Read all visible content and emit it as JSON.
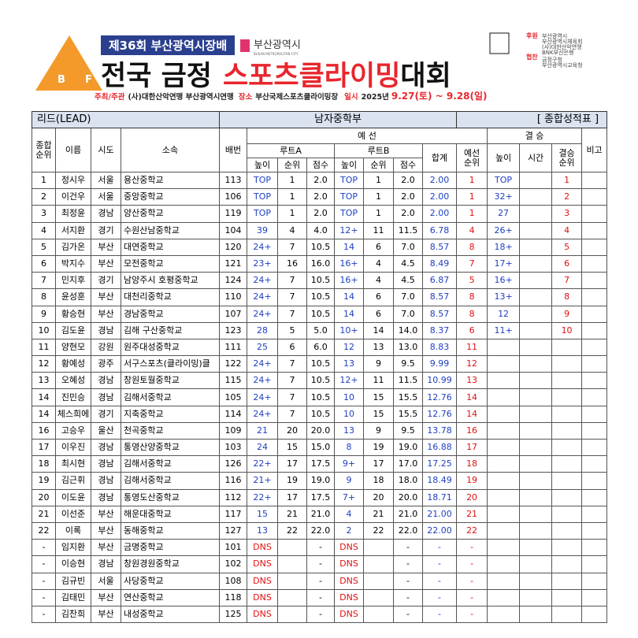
{
  "header": {
    "event_no": "제36회 부산광역시장배",
    "city_logo": "부산광역시",
    "city_logo_en": "BUSAN METROPOLITAN CITY",
    "logo_letters": [
      "B",
      "F"
    ],
    "title_black": "전국 금정",
    "title_red": "스포츠클라이밍",
    "title_end": "대회",
    "info": {
      "host_label": "주최/주관",
      "host": "(사)대한산악연맹 부산광역시연맹",
      "place_label": "장소",
      "place": "부산국제스포츠클라이밍장",
      "date_label": "일시",
      "year": "2025년",
      "dates": "9.27(토) ~ 9.28(일)"
    },
    "support_label": "후원",
    "support": [
      "부산광역시",
      "부산광역시체육회",
      "(사)대한산악연맹",
      "BNK부산은행"
    ],
    "sponsor_label": "협찬",
    "sponsor": [
      "금정구청",
      "부산광역시교육청"
    ]
  },
  "table": {
    "title_left": "리드(LEAD)",
    "title_center": "남자중학부",
    "title_right": "[ 종합성적표 ]",
    "headers": {
      "rank": "종합\n순위",
      "name": "이름",
      "city": "시도",
      "team": "소속",
      "bib": "배번",
      "qual": "예 선",
      "route_a": "루트A",
      "route_b": "루트B",
      "height": "높이",
      "route_rank": "순위",
      "score": "점수",
      "total": "합계",
      "qual_rank": "예선\n순위",
      "final": "결 승",
      "final_height": "높이",
      "time": "시간",
      "final_rank": "결승\n순위",
      "note": "비고"
    },
    "rows": [
      [
        "1",
        "정시우",
        "서울",
        "용산중학교",
        "113",
        "TOP",
        "1",
        "2.0",
        "TOP",
        "1",
        "2.0",
        "2.00",
        "1",
        "TOP",
        null,
        "1"
      ],
      [
        "2",
        "이건우",
        "서울",
        "중앙중학교",
        "106",
        "TOP",
        "1",
        "2.0",
        "TOP",
        "1",
        "2.0",
        "2.00",
        "1",
        "32+",
        null,
        "2"
      ],
      [
        "3",
        "최정윤",
        "경남",
        "양산중학교",
        "119",
        "TOP",
        "1",
        "2.0",
        "TOP",
        "1",
        "2.0",
        "2.00",
        "1",
        "27",
        null,
        "3"
      ],
      [
        "4",
        "서지환",
        "경기",
        "수원산남중학교",
        "104",
        "39",
        "4",
        "4.0",
        "12+",
        "11",
        "11.5",
        "6.78",
        "4",
        "26+",
        null,
        "4"
      ],
      [
        "5",
        "김가온",
        "부산",
        "대연중학교",
        "120",
        "24+",
        "7",
        "10.5",
        "14",
        "6",
        "7.0",
        "8.57",
        "8",
        "18+",
        null,
        "5"
      ],
      [
        "6",
        "박지수",
        "부산",
        "모전중학교",
        "121",
        "23+",
        "16",
        "16.0",
        "16+",
        "4",
        "4.5",
        "8.49",
        "7",
        "17+",
        null,
        "6"
      ],
      [
        "7",
        "민지후",
        "경기",
        "남양주시 호평중학교",
        "124",
        "24+",
        "7",
        "10.5",
        "16+",
        "4",
        "4.5",
        "6.87",
        "5",
        "16+",
        null,
        "7"
      ],
      [
        "8",
        "윤성훈",
        "부산",
        "대천리중학교",
        "110",
        "24+",
        "7",
        "10.5",
        "14",
        "6",
        "7.0",
        "8.57",
        "8",
        "13+",
        null,
        "8"
      ],
      [
        "9",
        "황승현",
        "부산",
        "경남중학교",
        "107",
        "24+",
        "7",
        "10.5",
        "14",
        "6",
        "7.0",
        "8.57",
        "8",
        "12",
        null,
        "9"
      ],
      [
        "10",
        "김도윤",
        "경남",
        "김해 구산중학교",
        "123",
        "28",
        "5",
        "5.0",
        "10+",
        "14",
        "14.0",
        "8.37",
        "6",
        "11+",
        null,
        "10"
      ],
      [
        "11",
        "양현모",
        "강원",
        "원주대성중학교",
        "111",
        "25",
        "6",
        "6.0",
        "12",
        "13",
        "13.0",
        "8.83",
        "11",
        null,
        null,
        null
      ],
      [
        "12",
        "황예성",
        "광주",
        "서구스포츠(클라이밍)클",
        "122",
        "24+",
        "7",
        "10.5",
        "13",
        "9",
        "9.5",
        "9.99",
        "12",
        null,
        null,
        null
      ],
      [
        "13",
        "오혜성",
        "경남",
        "창원토월중학교",
        "115",
        "24+",
        "7",
        "10.5",
        "12+",
        "11",
        "11.5",
        "10.99",
        "13",
        null,
        null,
        null
      ],
      [
        "14",
        "진민승",
        "경남",
        "김해서중학교",
        "105",
        "24+",
        "7",
        "10.5",
        "10",
        "15",
        "15.5",
        "12.76",
        "14",
        null,
        null,
        null
      ],
      [
        "14",
        "체스희에",
        "경기",
        "지축중학교",
        "114",
        "24+",
        "7",
        "10.5",
        "10",
        "15",
        "15.5",
        "12.76",
        "14",
        null,
        null,
        null
      ],
      [
        "16",
        "고승우",
        "울산",
        "천곡중학교",
        "109",
        "21",
        "20",
        "20.0",
        "13",
        "9",
        "9.5",
        "13.78",
        "16",
        null,
        null,
        null
      ],
      [
        "17",
        "이우진",
        "경남",
        "통영산양중학교",
        "103",
        "24",
        "15",
        "15.0",
        "8",
        "19",
        "19.0",
        "16.88",
        "17",
        null,
        null,
        null
      ],
      [
        "18",
        "최시현",
        "경남",
        "김해서중학교",
        "126",
        "22+",
        "17",
        "17.5",
        "9+",
        "17",
        "17.0",
        "17.25",
        "18",
        null,
        null,
        null
      ],
      [
        "19",
        "김근휘",
        "경남",
        "김해서중학교",
        "116",
        "21+",
        "19",
        "19.0",
        "9",
        "18",
        "18.0",
        "18.49",
        "19",
        null,
        null,
        null
      ],
      [
        "20",
        "이도윤",
        "경남",
        "통영도산중학교",
        "112",
        "22+",
        "17",
        "17.5",
        "7+",
        "20",
        "20.0",
        "18.71",
        "20",
        null,
        null,
        null
      ],
      [
        "21",
        "이선준",
        "부산",
        "해운대중학교",
        "117",
        "15",
        "21",
        "21.0",
        "4",
        "21",
        "21.0",
        "21.00",
        "21",
        null,
        null,
        null
      ],
      [
        "22",
        "이록",
        "부산",
        "동해중학교",
        "127",
        "13",
        "22",
        "22.0",
        "2",
        "22",
        "22.0",
        "22.00",
        "22",
        null,
        null,
        null
      ],
      [
        "-",
        "임지환",
        "부산",
        "금명중학교",
        "101",
        "DNS",
        null,
        "-",
        "DNS",
        null,
        "-",
        "-",
        "-",
        null,
        null,
        null
      ],
      [
        "-",
        "이승현",
        "경남",
        "창원경원중학교",
        "102",
        "DNS",
        null,
        "-",
        "DNS",
        null,
        "-",
        "-",
        "-",
        null,
        null,
        null
      ],
      [
        "-",
        "김규빈",
        "서울",
        "사당중학교",
        "108",
        "DNS",
        null,
        "-",
        "DNS",
        null,
        "-",
        "-",
        "-",
        null,
        null,
        null
      ],
      [
        "-",
        "김태민",
        "부산",
        "연산중학교",
        "118",
        "DNS",
        null,
        "-",
        "DNS",
        null,
        "-",
        "-",
        "-",
        null,
        null,
        null
      ],
      [
        "-",
        "김찬희",
        "부산",
        "내성중학교",
        "125",
        "DNS",
        null,
        "-",
        "DNS",
        null,
        "-",
        "-",
        "-",
        null,
        null,
        null
      ]
    ]
  }
}
